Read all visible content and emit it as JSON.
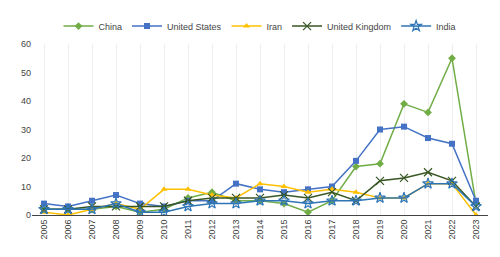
{
  "chart_data": {
    "type": "line",
    "x": [
      2005,
      2006,
      2007,
      2008,
      2009,
      2010,
      2011,
      2012,
      2013,
      2014,
      2015,
      2016,
      2017,
      2018,
      2019,
      2020,
      2021,
      2022,
      2023
    ],
    "series": [
      {
        "name": "China",
        "color": "#70AD47",
        "marker": "diamond",
        "values": [
          2,
          2,
          2,
          3,
          1,
          2,
          6,
          8,
          5,
          5,
          4,
          1,
          5,
          17,
          18,
          39,
          36,
          55,
          4
        ]
      },
      {
        "name": "United States",
        "color": "#4472C4",
        "marker": "square",
        "values": [
          4,
          3,
          5,
          7,
          4,
          3,
          5,
          5,
          11,
          9,
          8,
          9,
          10,
          19,
          30,
          31,
          27,
          25,
          5
        ]
      },
      {
        "name": "Iran",
        "color": "#FFC000",
        "marker": "triangle",
        "values": [
          1,
          0,
          2,
          4,
          2,
          9,
          9,
          7,
          6,
          11,
          10,
          8,
          9,
          8,
          6,
          6,
          11,
          11,
          0
        ]
      },
      {
        "name": "United Kingdom",
        "color": "#375623",
        "marker": "x",
        "values": [
          2,
          2,
          3,
          3,
          3,
          3,
          5,
          6,
          6,
          6,
          7,
          6,
          8,
          5,
          12,
          13,
          15,
          12,
          3
        ]
      },
      {
        "name": "India",
        "color": "#2E75B6",
        "marker": "star",
        "values": [
          2,
          2,
          2,
          4,
          1,
          1,
          3,
          4,
          4,
          5,
          5,
          4,
          5,
          5,
          6,
          6,
          11,
          11,
          3
        ]
      }
    ],
    "xlim": [
      2004.5,
      2023.5
    ],
    "xticks": [
      2005,
      2006,
      2007,
      2008,
      2009,
      2010,
      2011,
      2012,
      2013,
      2014,
      2015,
      2016,
      2017,
      2018,
      2019,
      2020,
      2021,
      2022,
      2023
    ],
    "ylim": [
      0,
      60
    ],
    "yticks": [
      0,
      10,
      20,
      30,
      40,
      50,
      60
    ],
    "grid": "x",
    "legend": "top"
  }
}
